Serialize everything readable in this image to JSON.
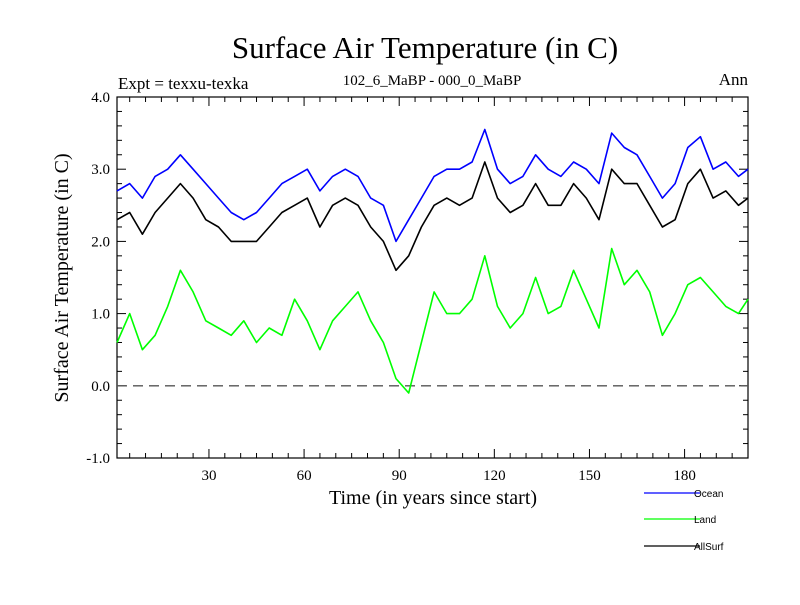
{
  "chart_data": {
    "type": "line",
    "title": "Surface Air Temperature (in C)",
    "subtitle_left": "Expt = texxu-texka",
    "subtitle_center": "102_6_MaBP - 000_0_MaBP",
    "subtitle_right": "Ann",
    "xlabel": "Time (in years since start)",
    "ylabel": "Surface Air Temperature (in C)",
    "xlim": [
      1,
      200
    ],
    "ylim": [
      -1.0,
      4.0
    ],
    "xticks": [
      30,
      60,
      90,
      120,
      150,
      180
    ],
    "xtick_labels": [
      "30",
      "60",
      "90",
      "120",
      "150",
      "180"
    ],
    "yticks": [
      -1.0,
      0.0,
      1.0,
      2.0,
      3.0,
      4.0
    ],
    "ytick_labels": [
      "-1.0",
      "0.0",
      "1.0",
      "2.0",
      "3.0",
      "4.0"
    ],
    "zero_line": 0.0,
    "colors": {
      "Ocean": "#0000ff",
      "Land": "#00ff00",
      "AllSurf": "#000000",
      "zero": "#555555"
    },
    "series": [
      {
        "name": "Ocean",
        "x": [
          1,
          5,
          9,
          13,
          17,
          21,
          25,
          29,
          33,
          37,
          41,
          45,
          49,
          53,
          57,
          61,
          65,
          69,
          73,
          77,
          81,
          85,
          89,
          93,
          97,
          101,
          105,
          109,
          113,
          117,
          121,
          125,
          129,
          133,
          137,
          141,
          145,
          149,
          153,
          157,
          161,
          165,
          169,
          173,
          177,
          181,
          185,
          189,
          193,
          197,
          200
        ],
        "values": [
          2.7,
          2.8,
          2.6,
          2.9,
          3.0,
          3.2,
          3.0,
          2.8,
          2.6,
          2.4,
          2.3,
          2.4,
          2.6,
          2.8,
          2.9,
          3.0,
          2.7,
          2.9,
          3.0,
          2.9,
          2.6,
          2.5,
          2.0,
          2.3,
          2.6,
          2.9,
          3.0,
          3.0,
          3.1,
          3.55,
          3.0,
          2.8,
          2.9,
          3.2,
          3.0,
          2.9,
          3.1,
          3.0,
          2.8,
          3.5,
          3.3,
          3.2,
          2.9,
          2.6,
          2.8,
          3.3,
          3.45,
          3.0,
          3.1,
          2.9,
          3.0
        ]
      },
      {
        "name": "Land",
        "x": [
          1,
          5,
          9,
          13,
          17,
          21,
          25,
          29,
          33,
          37,
          41,
          45,
          49,
          53,
          57,
          61,
          65,
          69,
          73,
          77,
          81,
          85,
          89,
          93,
          97,
          101,
          105,
          109,
          113,
          117,
          121,
          125,
          129,
          133,
          137,
          141,
          145,
          149,
          153,
          157,
          161,
          165,
          169,
          173,
          177,
          181,
          185,
          189,
          193,
          197,
          200
        ],
        "values": [
          0.6,
          1.0,
          0.5,
          0.7,
          1.1,
          1.6,
          1.3,
          0.9,
          0.8,
          0.7,
          0.9,
          0.6,
          0.8,
          0.7,
          1.2,
          0.9,
          0.5,
          0.9,
          1.1,
          1.3,
          0.9,
          0.6,
          0.1,
          -0.1,
          0.6,
          1.3,
          1.0,
          1.0,
          1.2,
          1.8,
          1.1,
          0.8,
          1.0,
          1.5,
          1.0,
          1.1,
          1.6,
          1.2,
          0.8,
          1.9,
          1.4,
          1.6,
          1.3,
          0.7,
          1.0,
          1.4,
          1.5,
          1.3,
          1.1,
          1.0,
          1.2
        ]
      },
      {
        "name": "AllSurf",
        "x": [
          1,
          5,
          9,
          13,
          17,
          21,
          25,
          29,
          33,
          37,
          41,
          45,
          49,
          53,
          57,
          61,
          65,
          69,
          73,
          77,
          81,
          85,
          89,
          93,
          97,
          101,
          105,
          109,
          113,
          117,
          121,
          125,
          129,
          133,
          137,
          141,
          145,
          149,
          153,
          157,
          161,
          165,
          169,
          173,
          177,
          181,
          185,
          189,
          193,
          197,
          200
        ],
        "values": [
          2.3,
          2.4,
          2.1,
          2.4,
          2.6,
          2.8,
          2.6,
          2.3,
          2.2,
          2.0,
          2.0,
          2.0,
          2.2,
          2.4,
          2.5,
          2.6,
          2.2,
          2.5,
          2.6,
          2.5,
          2.2,
          2.0,
          1.6,
          1.8,
          2.2,
          2.5,
          2.6,
          2.5,
          2.6,
          3.1,
          2.6,
          2.4,
          2.5,
          2.8,
          2.5,
          2.5,
          2.8,
          2.6,
          2.3,
          3.0,
          2.8,
          2.8,
          2.5,
          2.2,
          2.3,
          2.8,
          3.0,
          2.6,
          2.7,
          2.5,
          2.6
        ]
      }
    ]
  }
}
